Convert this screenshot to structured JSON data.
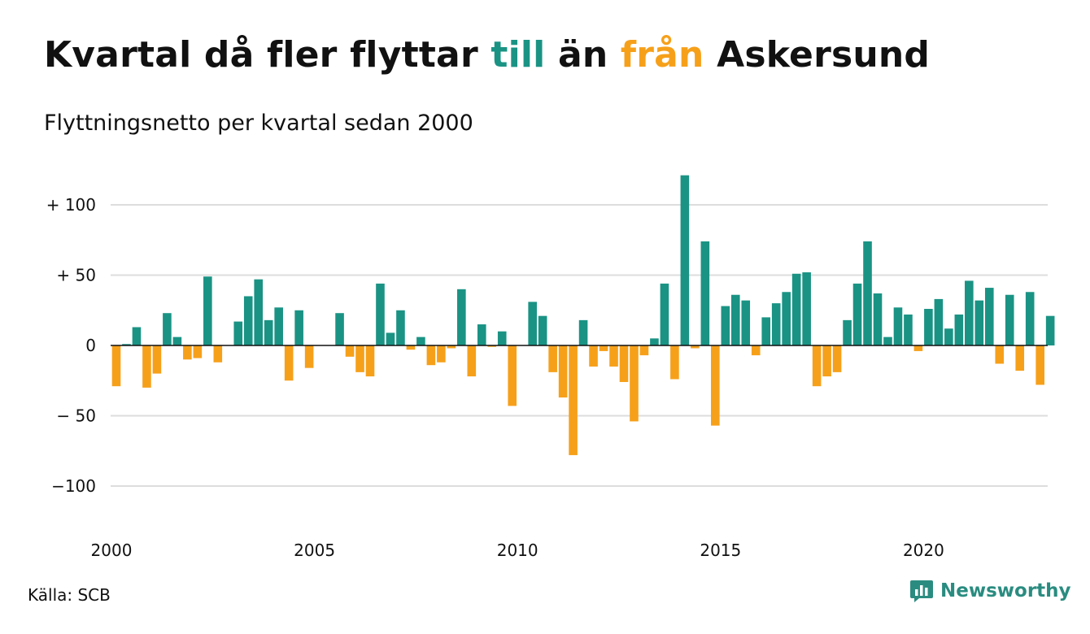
{
  "title": {
    "part1": "Kvartal då fler flyttar ",
    "word_in": "till",
    "part2": " än ",
    "word_out": "från",
    "part3": " Askersund"
  },
  "subtitle": "Flyttningsnetto per kvartal sedan 2000",
  "source": "Källa: SCB",
  "brand": {
    "name": "Newsworthy",
    "logo_icon": "bar-chart-speech-bubble-icon"
  },
  "colors": {
    "positive": "#1a9384",
    "negative": "#f6a01a",
    "grid": "#dddddd",
    "zero_line": "#111111"
  },
  "chart_data": {
    "type": "bar",
    "grid": true,
    "ylim": [
      -130,
      120
    ],
    "yticks": [
      {
        "value": 100,
        "label": "+ 100"
      },
      {
        "value": 50,
        "label": "+  50"
      },
      {
        "value": 0,
        "label": "0"
      },
      {
        "value": -50,
        "label": "− 50"
      },
      {
        "value": -100,
        "label": "−100"
      }
    ],
    "xticks": [
      "2000",
      "2005",
      "2010",
      "2015",
      "2020"
    ],
    "x_start": "2000 Q1",
    "values": [
      -29,
      1,
      13,
      -30,
      -20,
      23,
      6,
      -10,
      -9,
      49,
      -12,
      0,
      17,
      35,
      47,
      18,
      27,
      -25,
      25,
      -16,
      0,
      0,
      23,
      -8,
      -19,
      -22,
      44,
      9,
      25,
      -3,
      6,
      -14,
      -12,
      -2,
      40,
      -22,
      15,
      -1,
      10,
      -43,
      0,
      31,
      21,
      -19,
      -37,
      -78,
      18,
      -15,
      -4,
      -15,
      -26,
      -54,
      -7,
      5,
      44,
      -24,
      121,
      -2,
      74,
      -57,
      28,
      36,
      32,
      -7,
      20,
      30,
      38,
      51,
      52,
      -29,
      -22,
      -19,
      18,
      44,
      74,
      37,
      6,
      27,
      22,
      -4,
      26,
      33,
      12,
      22,
      46,
      32,
      41,
      -13,
      36,
      -18,
      38,
      -28,
      21
    ]
  }
}
